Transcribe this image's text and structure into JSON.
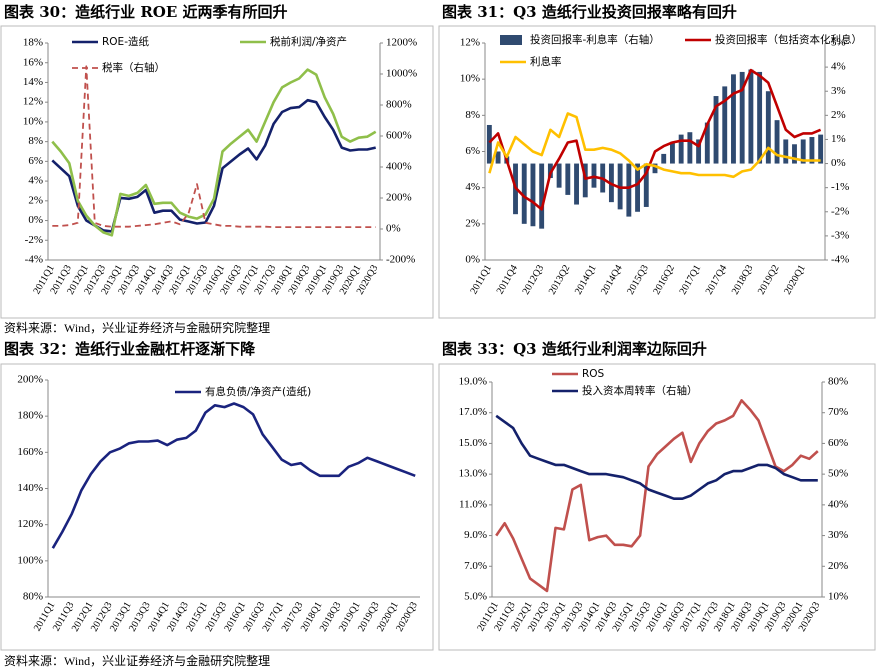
{
  "chart_data": [
    {
      "type": "line",
      "title": "图表 30：造纸行业 ROE 近两季有所回升",
      "categories": [
        "2011Q1",
        null,
        "2011Q3",
        null,
        "2012Q1",
        null,
        "2012Q3",
        null,
        "2013Q1",
        null,
        "2013Q3",
        null,
        "2014Q1",
        null,
        "2014Q3",
        null,
        "2015Q1",
        null,
        "2015Q3",
        null,
        "2016Q1",
        null,
        "2016Q3",
        null,
        "2017Q1",
        null,
        "2017Q3",
        null,
        "2018Q1",
        null,
        "2018Q3",
        null,
        "2019Q1",
        null,
        "2019Q3",
        null,
        "2020Q1",
        null,
        "2020Q3"
      ],
      "series": [
        {
          "name": "ROE-造纸",
          "color": "#14216b",
          "type": "line",
          "values": [
            6.1,
            5.3,
            4.5,
            1.5,
            0,
            -0.5,
            -1,
            -1.1,
            2.3,
            2.2,
            2.4,
            3.1,
            0.8,
            1.0,
            1.0,
            0.1,
            -0.1,
            -0.3,
            -0.2,
            1.5,
            5.3,
            6.0,
            6.7,
            7.3,
            6.2,
            7.6,
            9.8,
            11.0,
            11.4,
            11.5,
            12.2,
            12.0,
            10.5,
            9.2,
            7.4,
            7.1,
            7.2,
            7.2,
            7.4
          ]
        },
        {
          "name": "税前利润/净资产",
          "color": "#8fbf4a",
          "type": "line",
          "values": [
            8,
            7,
            5.8,
            2,
            0.5,
            -0.5,
            -1.2,
            -1.5,
            2.7,
            2.5,
            2.8,
            3.6,
            1.7,
            1.8,
            1.8,
            0.8,
            0.4,
            0.2,
            0.6,
            2.2,
            7.0,
            7.8,
            8.5,
            9.2,
            8.0,
            10.0,
            12.0,
            13.5,
            14.0,
            14.4,
            15.3,
            14.8,
            12.5,
            10.8,
            8.5,
            8.0,
            8.4,
            8.5,
            9.0
          ]
        },
        {
          "name": "税率（右轴）",
          "color": "#c0504d",
          "type": "line",
          "dash": true,
          "axis": "y2",
          "values": [
            20,
            20,
            25,
            40,
            1050,
            40,
            20,
            15,
            15,
            15,
            20,
            25,
            30,
            40,
            50,
            30,
            100,
            290,
            40,
            30,
            20,
            20,
            15,
            15,
            15,
            15,
            12,
            12,
            12,
            12,
            12,
            12,
            12,
            12,
            12,
            12,
            12,
            12,
            12
          ]
        }
      ],
      "ylim": [
        -4,
        18
      ],
      "yticks": [
        {
          "value": -4,
          "label": "-4%"
        },
        {
          "value": -2,
          "label": "-2%"
        },
        {
          "value": 0,
          "label": "0%"
        },
        {
          "value": 2,
          "label": "2%"
        },
        {
          "value": 4,
          "label": "4%"
        },
        {
          "value": 6,
          "label": "6%"
        },
        {
          "value": 8,
          "label": "8%"
        },
        {
          "value": 10,
          "label": "10%"
        },
        {
          "value": 12,
          "label": "12%"
        },
        {
          "value": 14,
          "label": "14%"
        },
        {
          "value": 16,
          "label": "16%"
        },
        {
          "value": 18,
          "label": "18%"
        }
      ],
      "y2lim": [
        -200,
        1200
      ],
      "y2ticks": [
        {
          "value": -200,
          "label": "-200%"
        },
        {
          "value": 0,
          "label": "0%"
        },
        {
          "value": 200,
          "label": "200%"
        },
        {
          "value": 400,
          "label": "400%"
        },
        {
          "value": 600,
          "label": "600%"
        },
        {
          "value": 800,
          "label": "800%"
        },
        {
          "value": 1000,
          "label": "1000%"
        },
        {
          "value": 1200,
          "label": "1200%"
        }
      ]
    },
    {
      "type": "combo",
      "title": "图表 31：Q3 造纸行业投资回报率略有回升",
      "categories": [
        "2011Q1",
        null,
        null,
        "2011Q4",
        null,
        null,
        "2012Q3",
        null,
        null,
        "2013Q2",
        null,
        null,
        "2014Q1",
        null,
        null,
        "2014Q4",
        null,
        null,
        "2015Q3",
        null,
        null,
        "2016Q2",
        null,
        null,
        "2017Q1",
        null,
        null,
        "2017Q4",
        null,
        null,
        "2018Q3",
        null,
        null,
        "2019Q2",
        null,
        null,
        "2020Q1",
        null,
        null
      ],
      "series": [
        {
          "name": "投资回报率-利息率（右轴）",
          "color": "#2f4a70",
          "type": "bar",
          "axis": "y2",
          "values": [
            1.6,
            0.5,
            0.3,
            -2.1,
            -2.5,
            -2.6,
            -2.7,
            -0.6,
            -1.0,
            -1.3,
            -1.7,
            -1.4,
            -1.0,
            -1.2,
            -1.6,
            -1.9,
            -2.2,
            -2.0,
            -1.8,
            -0.4,
            0.4,
            0.9,
            1.2,
            1.3,
            1.0,
            1.7,
            2.8,
            3.2,
            3.7,
            3.8,
            3.9,
            3.8,
            3.0,
            1.8,
            1.0,
            0.8,
            1.0,
            1.1,
            1.2
          ]
        },
        {
          "name": "投资回报率（包括资本化利息）",
          "color": "#c00000",
          "type": "line",
          "values": [
            6.5,
            7.0,
            5.5,
            4.0,
            3.5,
            3.2,
            2.8,
            4.8,
            5.6,
            6.5,
            6.6,
            4.5,
            4.6,
            4.5,
            4.2,
            4.0,
            4.0,
            4.2,
            4.8,
            6.0,
            6.3,
            6.5,
            6.6,
            6.6,
            6.3,
            7.5,
            8.5,
            8.8,
            9.2,
            9.4,
            10.5,
            10.2,
            9.8,
            8.5,
            7.2,
            6.8,
            7.0,
            7.0,
            7.2
          ]
        },
        {
          "name": "利息率",
          "color": "#ffc000",
          "type": "line",
          "values": [
            4.8,
            6.5,
            5.7,
            6.8,
            6.4,
            6.0,
            5.8,
            7.2,
            6.8,
            8.1,
            7.9,
            6.1,
            6.1,
            6.2,
            6.1,
            5.9,
            5.5,
            5.0,
            5.3,
            5.2,
            5.0,
            4.9,
            4.8,
            4.8,
            4.7,
            4.7,
            4.7,
            4.7,
            4.6,
            4.9,
            5.0,
            5.5,
            6.2,
            5.8,
            5.7,
            5.6,
            5.5,
            5.5,
            5.5
          ]
        }
      ],
      "ylim": [
        0,
        12
      ],
      "yticks": [
        {
          "value": 0,
          "label": "0%"
        },
        {
          "value": 2,
          "label": "2%"
        },
        {
          "value": 4,
          "label": "4%"
        },
        {
          "value": 6,
          "label": "6%"
        },
        {
          "value": 8,
          "label": "8%"
        },
        {
          "value": 10,
          "label": "10%"
        },
        {
          "value": 12,
          "label": "12%"
        }
      ],
      "y2lim": [
        -4,
        5
      ],
      "y2ticks": [
        {
          "value": -4,
          "label": "-4%"
        },
        {
          "value": -3,
          "label": "-3%"
        },
        {
          "value": -2,
          "label": "-2%"
        },
        {
          "value": -1,
          "label": "-1%"
        },
        {
          "value": 0,
          "label": "0%"
        },
        {
          "value": 1,
          "label": "1%"
        },
        {
          "value": 2,
          "label": "2%"
        },
        {
          "value": 3,
          "label": "3%"
        },
        {
          "value": 4,
          "label": "4%"
        },
        {
          "value": 5,
          "label": "5%"
        }
      ]
    },
    {
      "type": "line",
      "title": "图表 32：造纸行业金融杠杆逐渐下降",
      "categories": [
        "2011Q1",
        null,
        "2011Q3",
        null,
        "2012Q1",
        null,
        "2012Q3",
        null,
        "2013Q1",
        null,
        "2013Q3",
        null,
        "2014Q1",
        null,
        "2014Q3",
        null,
        "2015Q1",
        null,
        "2015Q3",
        null,
        "2016Q1",
        null,
        "2016Q3",
        null,
        "2017Q1",
        null,
        "2017Q3",
        null,
        "2018Q1",
        null,
        "2018Q3",
        null,
        "2019Q1",
        null,
        "2019Q3",
        null,
        "2020Q1",
        null,
        "2020Q3"
      ],
      "series": [
        {
          "name": "有息负债/净资产(造纸)",
          "color": "#1a237e",
          "type": "line",
          "values": [
            107,
            116,
            126,
            139,
            148,
            155,
            160,
            162,
            165,
            166,
            166,
            166.5,
            164,
            167,
            168,
            172,
            182,
            186,
            185,
            187,
            185,
            181,
            170,
            163,
            156,
            153,
            154,
            150,
            147,
            147,
            147,
            152,
            154,
            157,
            155,
            153,
            151,
            149,
            147
          ]
        }
      ],
      "ylim": [
        80,
        200
      ],
      "yticks": [
        {
          "value": 80,
          "label": "80%"
        },
        {
          "value": 100,
          "label": "100%"
        },
        {
          "value": 120,
          "label": "120%"
        },
        {
          "value": 140,
          "label": "140%"
        },
        {
          "value": 160,
          "label": "160%"
        },
        {
          "value": 180,
          "label": "180%"
        },
        {
          "value": 200,
          "label": "200%"
        }
      ]
    },
    {
      "type": "line",
      "title": "图表 33：Q3 造纸行业利润率边际回升",
      "categories": [
        "2011Q1",
        null,
        "2011Q3",
        null,
        "2012Q1",
        null,
        "2012Q3",
        null,
        "2013Q1",
        null,
        "2013Q3",
        null,
        "2014Q1",
        null,
        "2014Q3",
        null,
        "2015Q1",
        null,
        "2015Q3",
        null,
        "2016Q1",
        null,
        "2016Q3",
        null,
        "2017Q1",
        null,
        "2017Q3",
        null,
        "2018Q1",
        null,
        "2018Q3",
        null,
        "2019Q1",
        null,
        "2019Q3",
        null,
        "2020Q1",
        null,
        "2020Q3"
      ],
      "series": [
        {
          "name": "ROS",
          "color": "#c0504d",
          "type": "line",
          "values": [
            9.0,
            9.8,
            8.8,
            7.5,
            6.2,
            5.8,
            5.4,
            9.5,
            9.4,
            12.0,
            12.3,
            8.7,
            8.9,
            9.0,
            8.4,
            8.4,
            8.3,
            9.0,
            13.5,
            14.3,
            14.8,
            15.3,
            15.7,
            13.8,
            15.0,
            15.8,
            16.3,
            16.5,
            16.8,
            17.8,
            17.2,
            16.5,
            15.0,
            13.5,
            13.2,
            13.6,
            14.2,
            14.0,
            14.5
          ]
        },
        {
          "name": "投入资本周转率（右轴）",
          "color": "#14216b",
          "type": "line",
          "axis": "y2",
          "values": [
            69,
            67,
            65,
            60,
            56,
            55,
            54,
            53,
            53,
            52,
            51,
            50,
            50,
            50,
            49.5,
            49,
            48,
            47,
            45,
            44,
            43,
            42,
            42,
            43,
            45,
            47,
            48,
            50,
            51,
            51,
            52,
            53,
            53,
            52,
            50,
            49,
            48,
            48,
            48
          ]
        }
      ],
      "ylim": [
        5,
        19
      ],
      "yticks": [
        {
          "value": 5,
          "label": "5.0%"
        },
        {
          "value": 7,
          "label": "7.0%"
        },
        {
          "value": 9,
          "label": "9.0%"
        },
        {
          "value": 11,
          "label": "11.0%"
        },
        {
          "value": 13,
          "label": "13.0%"
        },
        {
          "value": 15,
          "label": "15.0%"
        },
        {
          "value": 17,
          "label": "17.0%"
        },
        {
          "value": 19,
          "label": "19.0%"
        }
      ],
      "y2lim": [
        10,
        80
      ],
      "y2ticks": [
        {
          "value": 10,
          "label": "10%"
        },
        {
          "value": 20,
          "label": "20%"
        },
        {
          "value": 30,
          "label": "30%"
        },
        {
          "value": 40,
          "label": "40%"
        },
        {
          "value": 50,
          "label": "50%"
        },
        {
          "value": 60,
          "label": "60%"
        },
        {
          "value": 70,
          "label": "70%"
        },
        {
          "value": 80,
          "label": "80%"
        }
      ]
    }
  ],
  "sources": [
    "资料来源：Wind，兴业证券经济与金融研究院整理",
    "资料来源：Wind，兴业证券经济与金融研究院整理"
  ]
}
